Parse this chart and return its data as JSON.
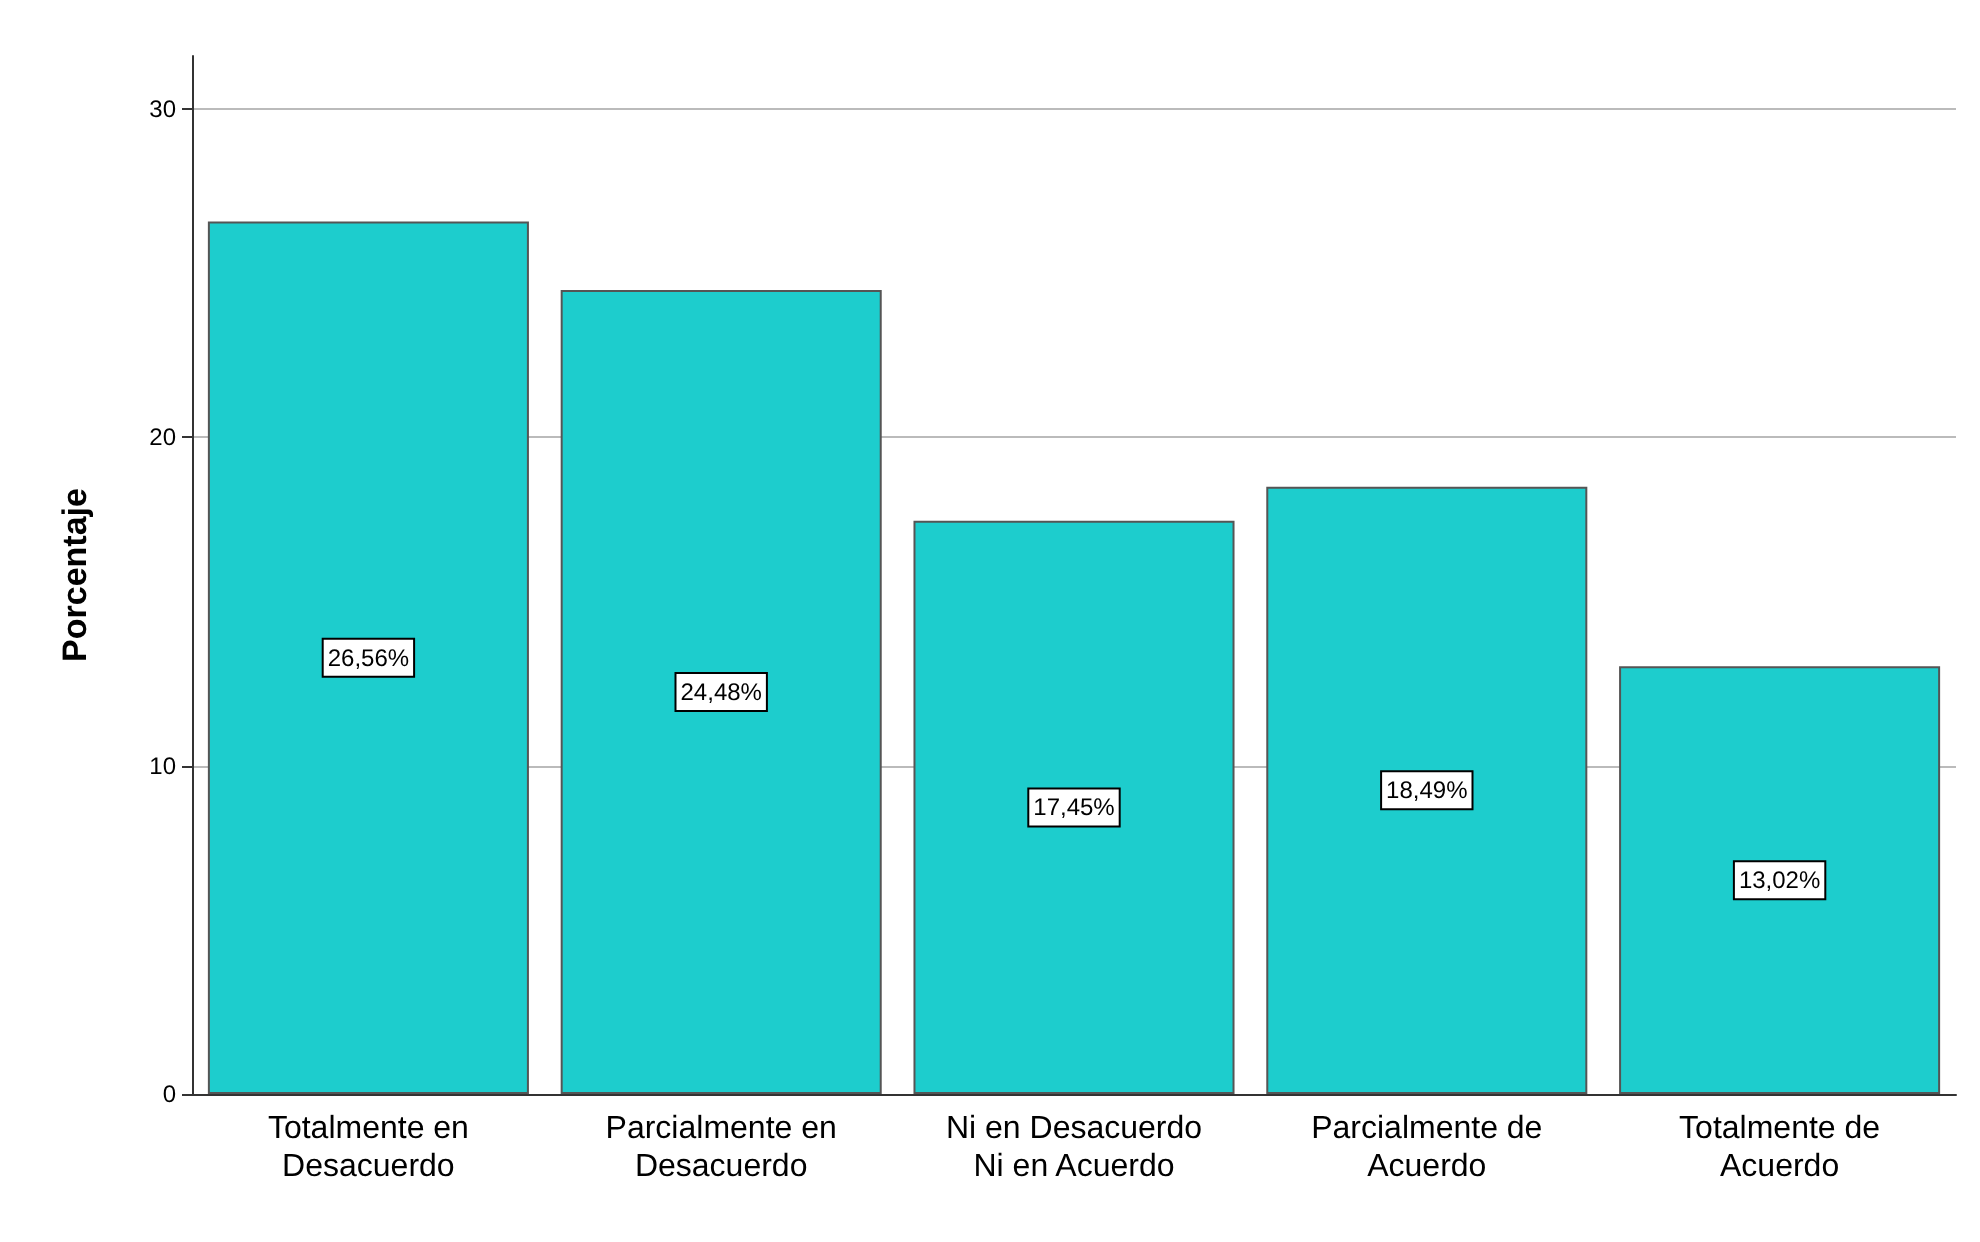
{
  "chart_data": {
    "type": "bar",
    "ylabel": "Porcentaje",
    "categories": [
      "Totalmente en\nDesacuerdo",
      "Parcialmente en\nDesacuerdo",
      "Ni en Desacuerdo\nNi en Acuerdo",
      "Parcialmente de\nAcuerdo",
      "Totalmente de\nAcuerdo"
    ],
    "values": [
      26.56,
      24.48,
      17.45,
      18.49,
      13.02
    ],
    "value_labels": [
      "26,56%",
      "24,48%",
      "17,45%",
      "18,49%",
      "13,02%"
    ],
    "color": "#1dcdcd",
    "ylim": [
      0,
      31.6
    ],
    "yticks": [
      0,
      10,
      20,
      30
    ],
    "grid": "y"
  }
}
